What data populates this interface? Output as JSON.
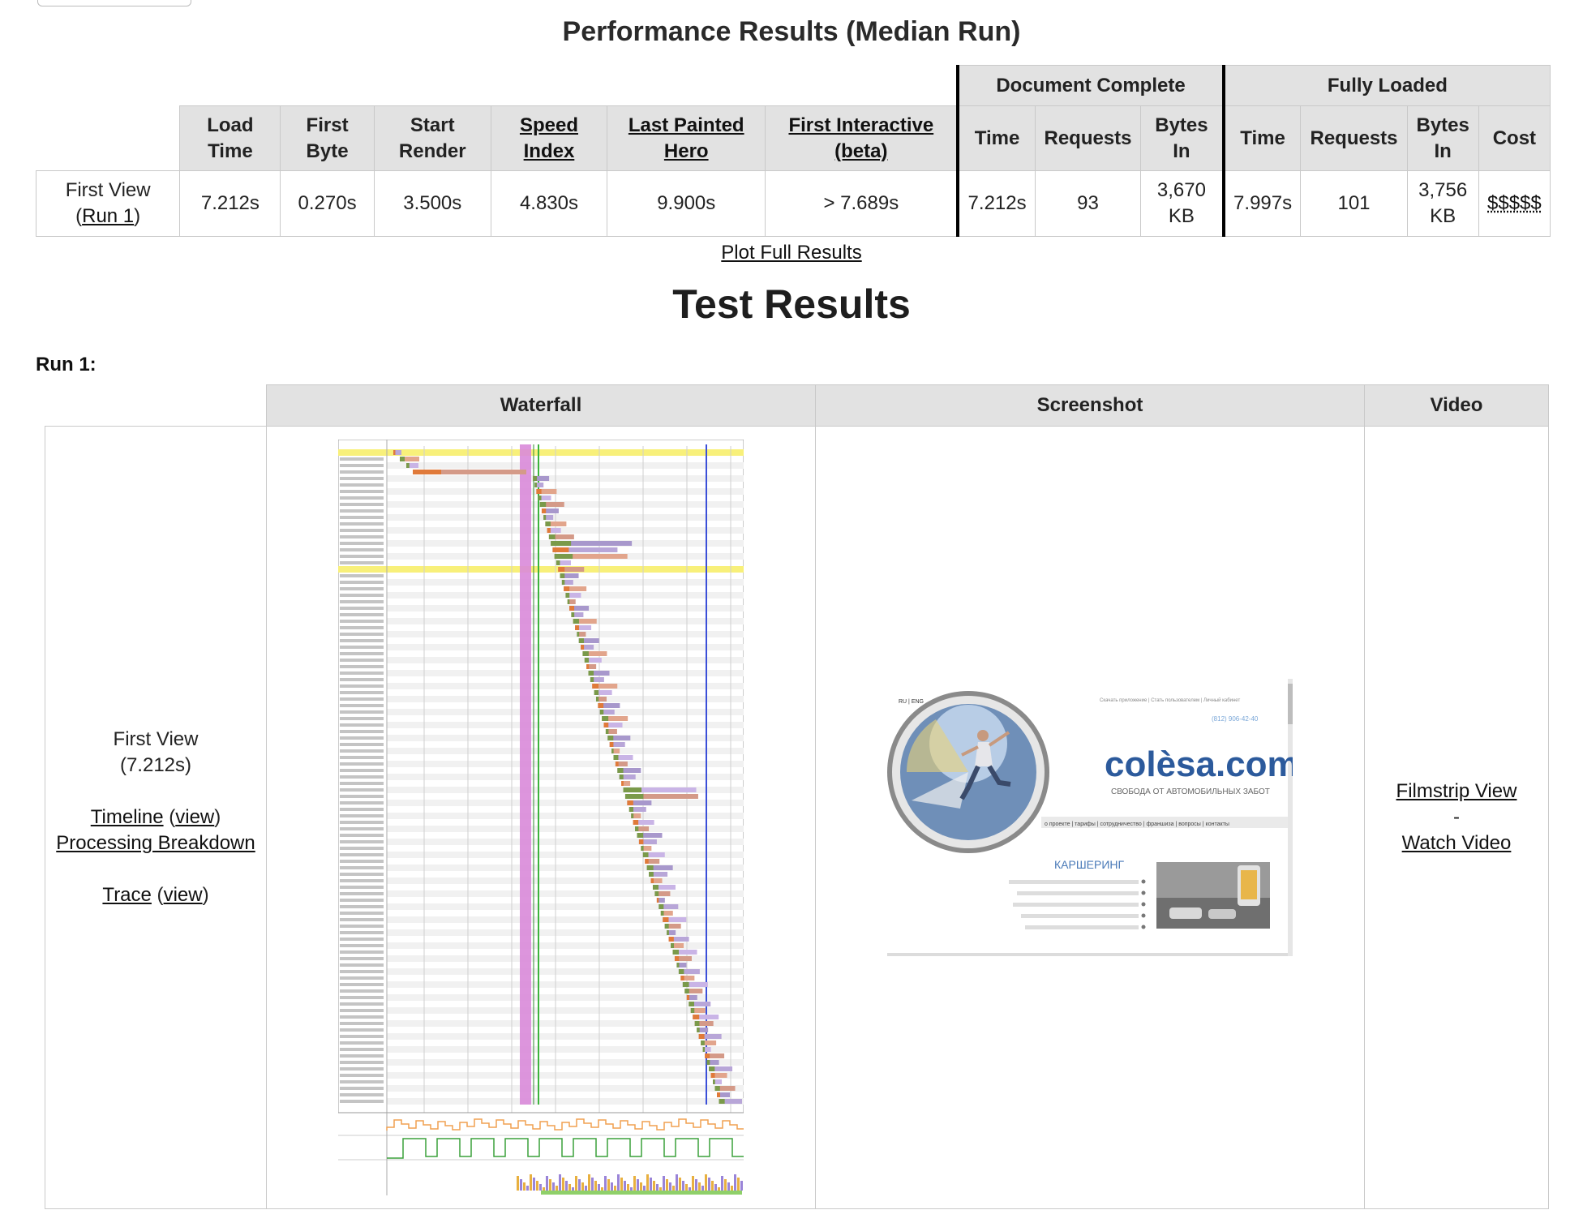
{
  "perf": {
    "title": "Performance Results (Median Run)",
    "group_doc": "Document Complete",
    "group_full": "Fully Loaded",
    "headers": {
      "load_time": [
        "Load",
        "Time"
      ],
      "first_byte": [
        "First",
        "Byte"
      ],
      "start_render": [
        "Start",
        "Render"
      ],
      "speed_index": [
        "Speed",
        "Index"
      ],
      "last_painted_hero": [
        "Last Painted",
        "Hero"
      ],
      "first_interactive": [
        "First Interactive",
        "(beta)"
      ],
      "doc_time": "Time",
      "doc_requests": "Requests",
      "doc_bytes": [
        "Bytes",
        "In"
      ],
      "full_time": "Time",
      "full_requests": "Requests",
      "full_bytes": [
        "Bytes",
        "In"
      ],
      "cost": "Cost"
    },
    "row": {
      "label": "First View",
      "run_link": "Run 1",
      "load_time": "7.212s",
      "first_byte": "0.270s",
      "start_render": "3.500s",
      "speed_index": "4.830s",
      "last_painted_hero": "9.900s",
      "first_interactive": "> 7.689s",
      "doc_time": "7.212s",
      "doc_requests": "93",
      "doc_bytes": [
        "3,670",
        "KB"
      ],
      "full_time": "7.997s",
      "full_requests": "101",
      "full_bytes": [
        "3,756",
        "KB"
      ],
      "cost": "$$$$$"
    },
    "plot_link": "Plot Full Results"
  },
  "test": {
    "title": "Test Results",
    "run_label": "Run 1:",
    "columns": {
      "waterfall": "Waterfall",
      "screenshot": "Screenshot",
      "video": "Video"
    },
    "first_view": {
      "label": "First View",
      "time": "(7.212s)",
      "timeline": "Timeline",
      "view": "view",
      "processing": "Processing Breakdown",
      "trace": "Trace"
    },
    "video": {
      "filmstrip": "Filmstrip View",
      "separator": "-",
      "watch": "Watch Video"
    },
    "screenshot_content": {
      "logo": "colèsa.com",
      "tagline": "СВОБОДА ОТ АВТОМОБИЛЬНЫХ ЗАБОТ",
      "section": "КАРШЕРИНГ"
    }
  },
  "colors": {
    "header_bg": "#e2e2e2",
    "border": "#c9c9c9",
    "render_line": "#d98ad9",
    "dom_line": "#3cb43c",
    "onload_line": "#3b4fd8",
    "highlight_row": "#f8f07a"
  }
}
